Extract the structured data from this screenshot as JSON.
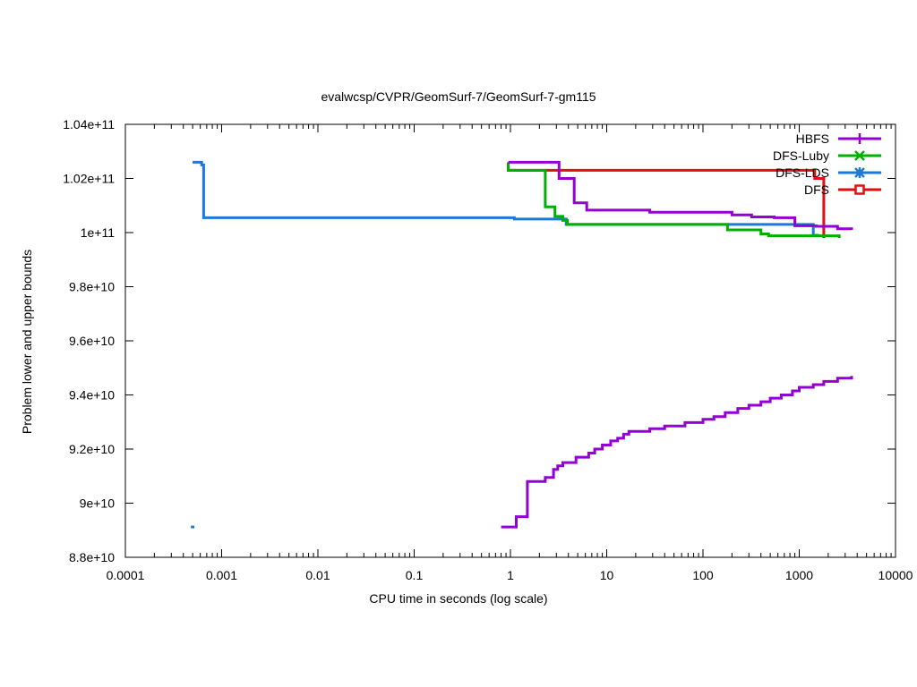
{
  "chart_data": {
    "type": "line",
    "title": "evalwcsp/CVPR/GeomSurf-7/GeomSurf-7-gm115",
    "xlabel": "CPU time in seconds (log scale)",
    "ylabel": "Problem lower and upper bounds",
    "x_scale": "log",
    "xlim": [
      0.0001,
      10000
    ],
    "ylim": [
      88000000000,
      104000000000
    ],
    "x_ticks": [
      "0.0001",
      "0.001",
      "0.01",
      "0.1",
      "1",
      "10",
      "100",
      "1000",
      "10000"
    ],
    "y_ticks": [
      "8.8e+10",
      "9e+10",
      "9.2e+10",
      "9.4e+10",
      "9.6e+10",
      "9.8e+10",
      "1e+11",
      "1.02e+11",
      "1.04e+11"
    ],
    "legend_position": "top-right",
    "series": [
      {
        "name": "HBFS",
        "color": "#9400d3",
        "marker": "plus",
        "upper": [
          [
            0.95,
            102600000000
          ],
          [
            3.2,
            102600000000
          ],
          [
            3.2,
            102000000000
          ],
          [
            4.6,
            102000000000
          ],
          [
            4.6,
            101100000000
          ],
          [
            6.2,
            101100000000
          ],
          [
            6.2,
            100830000000
          ],
          [
            28,
            100830000000
          ],
          [
            28,
            100750000000
          ],
          [
            200,
            100750000000
          ],
          [
            200,
            100650000000
          ],
          [
            320,
            100650000000
          ],
          [
            320,
            100580000000
          ],
          [
            550,
            100580000000
          ],
          [
            550,
            100550000000
          ],
          [
            900,
            100550000000
          ],
          [
            900,
            100250000000
          ],
          [
            1500,
            100250000000
          ],
          [
            1500,
            100230000000
          ],
          [
            2500,
            100230000000
          ],
          [
            2500,
            100140000000
          ],
          [
            3500,
            100140000000
          ],
          [
            3500,
            100100000000
          ]
        ],
        "lower": [
          [
            0.8,
            89120000000
          ],
          [
            1.15,
            89120000000
          ],
          [
            1.15,
            89500000000
          ],
          [
            1.5,
            89500000000
          ],
          [
            1.5,
            90800000000
          ],
          [
            2.3,
            90800000000
          ],
          [
            2.3,
            90950000000
          ],
          [
            2.8,
            90950000000
          ],
          [
            2.8,
            91250000000
          ],
          [
            3.1,
            91250000000
          ],
          [
            3.1,
            91380000000
          ],
          [
            3.5,
            91380000000
          ],
          [
            3.5,
            91500000000
          ],
          [
            4.8,
            91500000000
          ],
          [
            4.8,
            91700000000
          ],
          [
            6.5,
            91700000000
          ],
          [
            6.5,
            91850000000
          ],
          [
            7.5,
            91850000000
          ],
          [
            7.5,
            92000000000
          ],
          [
            9,
            92000000000
          ],
          [
            9,
            92150000000
          ],
          [
            11,
            92150000000
          ],
          [
            11,
            92300000000
          ],
          [
            13,
            92300000000
          ],
          [
            13,
            92400000000
          ],
          [
            15,
            92400000000
          ],
          [
            15,
            92550000000
          ],
          [
            17,
            92550000000
          ],
          [
            17,
            92650000000
          ],
          [
            28,
            92650000000
          ],
          [
            28,
            92750000000
          ],
          [
            40,
            92750000000
          ],
          [
            40,
            92850000000
          ],
          [
            65,
            92850000000
          ],
          [
            65,
            92980000000
          ],
          [
            100,
            92980000000
          ],
          [
            100,
            93100000000
          ],
          [
            130,
            93100000000
          ],
          [
            130,
            93200000000
          ],
          [
            170,
            93200000000
          ],
          [
            170,
            93350000000
          ],
          [
            230,
            93350000000
          ],
          [
            230,
            93500000000
          ],
          [
            300,
            93500000000
          ],
          [
            300,
            93620000000
          ],
          [
            400,
            93620000000
          ],
          [
            400,
            93750000000
          ],
          [
            500,
            93750000000
          ],
          [
            500,
            93880000000
          ],
          [
            650,
            93880000000
          ],
          [
            650,
            94000000000
          ],
          [
            850,
            94000000000
          ],
          [
            850,
            94150000000
          ],
          [
            1000,
            94150000000
          ],
          [
            1000,
            94280000000
          ],
          [
            1400,
            94280000000
          ],
          [
            1400,
            94380000000
          ],
          [
            1800,
            94380000000
          ],
          [
            1800,
            94500000000
          ],
          [
            2500,
            94500000000
          ],
          [
            2500,
            94620000000
          ],
          [
            3500,
            94620000000
          ],
          [
            3500,
            94700000000
          ]
        ]
      },
      {
        "name": "DFS-Luby",
        "color": "#00b000",
        "marker": "cross",
        "upper": [
          [
            0.95,
            102600000000
          ],
          [
            0.95,
            102300000000
          ],
          [
            2.3,
            102300000000
          ],
          [
            2.3,
            100950000000
          ],
          [
            2.9,
            100950000000
          ],
          [
            2.9,
            100600000000
          ],
          [
            3.5,
            100600000000
          ],
          [
            3.5,
            100450000000
          ],
          [
            3.9,
            100450000000
          ],
          [
            3.9,
            100300000000
          ],
          [
            180,
            100300000000
          ],
          [
            180,
            100100000000
          ],
          [
            400,
            100100000000
          ],
          [
            400,
            99950000000
          ],
          [
            480,
            99950000000
          ],
          [
            480,
            99880000000
          ],
          [
            2600,
            99880000000
          ],
          [
            2600,
            99800000000
          ]
        ]
      },
      {
        "name": "DFS-LDS",
        "color": "#1e78dc",
        "marker": "star",
        "upper": [
          [
            0.0005,
            102600000000
          ],
          [
            0.00062,
            102600000000
          ],
          [
            0.00062,
            102500000000
          ],
          [
            0.00065,
            102500000000
          ],
          [
            0.00065,
            100550000000
          ],
          [
            1.1,
            100550000000
          ],
          [
            1.1,
            100500000000
          ],
          [
            3.8,
            100500000000
          ],
          [
            3.8,
            100300000000
          ],
          [
            1400,
            100300000000
          ],
          [
            1400,
            99900000000
          ],
          [
            1600,
            99900000000
          ]
        ],
        "lower": [
          [
            0.00048,
            89120000000
          ],
          [
            0.00052,
            89120000000
          ]
        ]
      },
      {
        "name": "DFS",
        "color": "#e01010",
        "marker": "box",
        "upper": [
          [
            0.95,
            102600000000
          ],
          [
            0.95,
            102300000000
          ],
          [
            1450,
            102300000000
          ],
          [
            1450,
            102000000000
          ],
          [
            1800,
            102000000000
          ],
          [
            1800,
            99800000000
          ]
        ]
      }
    ]
  }
}
